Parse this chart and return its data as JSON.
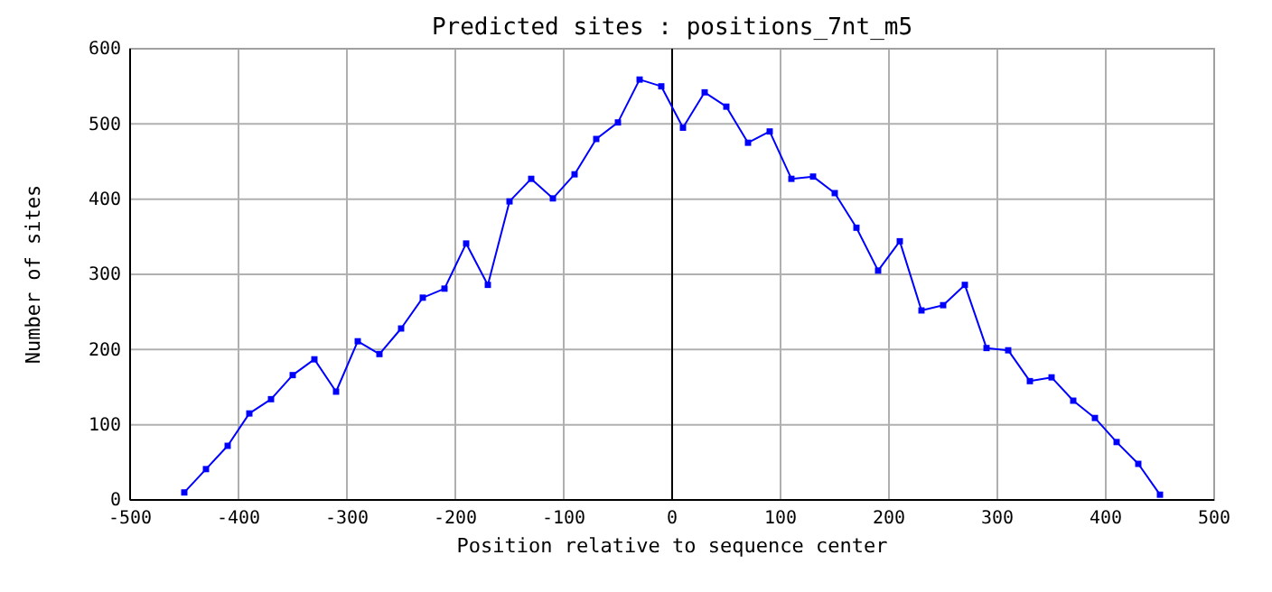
{
  "chart_data": {
    "type": "line",
    "title": "Predicted sites : positions_7nt_m5",
    "xlabel": "Position relative to sequence center",
    "ylabel": "Number of sites",
    "x": [
      -450,
      -430,
      -410,
      -390,
      -370,
      -350,
      -330,
      -310,
      -290,
      -270,
      -250,
      -230,
      -210,
      -190,
      -170,
      -150,
      -130,
      -110,
      -90,
      -70,
      -50,
      -30,
      -10,
      10,
      30,
      50,
      70,
      90,
      110,
      130,
      150,
      170,
      190,
      210,
      230,
      250,
      270,
      290,
      310,
      330,
      350,
      370,
      390,
      410,
      430,
      450
    ],
    "series": [
      {
        "color": "#0000ff",
        "values": [
          10,
          41,
          72,
          115,
          134,
          166,
          187,
          144,
          211,
          194,
          228,
          269,
          281,
          341,
          286,
          397,
          427,
          401,
          433,
          480,
          502,
          559,
          550,
          495,
          542,
          523,
          475,
          490,
          427,
          430,
          408,
          362,
          305,
          344,
          252,
          259,
          286,
          202,
          199,
          158,
          163,
          132,
          109,
          77,
          48,
          7
        ]
      }
    ],
    "xlim": [
      -500,
      500
    ],
    "xticks": [
      -500,
      -400,
      -300,
      -200,
      -100,
      0,
      100,
      200,
      300,
      400,
      500
    ],
    "ylim": [
      0,
      600
    ],
    "yticks": [
      0,
      100,
      200,
      300,
      400,
      500,
      600
    ],
    "grid": true,
    "marker": "square",
    "line_style": "solid",
    "ref_lines": [
      {
        "axis": "x",
        "value": 0,
        "color": "#000000"
      }
    ]
  }
}
